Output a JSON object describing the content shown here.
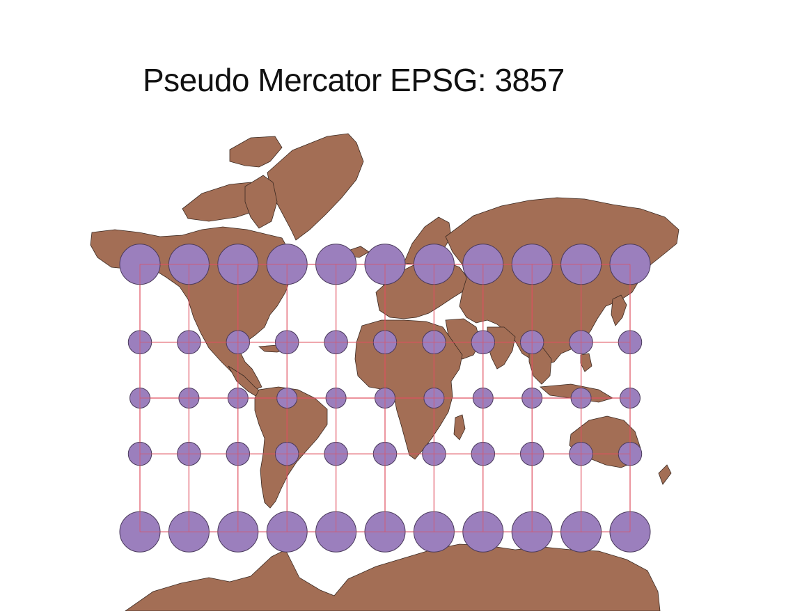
{
  "title": "Pseudo Mercator EPSG: 3857",
  "colors": {
    "land": "#A36E55",
    "land_outline": "#3b2a22",
    "circle_fill": "#9B7FBD",
    "circle_stroke": "#4a3a5c",
    "grid": "#e05060",
    "background": "#ffffff"
  },
  "map": {
    "projection": "Pseudo Mercator",
    "epsg": "3857",
    "layers": [
      "world-land",
      "graticule",
      "tissot-indicatrix"
    ],
    "graticule": {
      "longitudes": [
        -150,
        -120,
        -90,
        -60,
        -30,
        0,
        30,
        60,
        90,
        120,
        150
      ],
      "latitudes": [
        60,
        30,
        0,
        -30,
        -60
      ]
    },
    "tissot_indicatrix": {
      "description": "equal-area circles on the ground, drawn at every graticule intersection",
      "longitudes": [
        -150,
        -120,
        -90,
        -60,
        -30,
        0,
        30,
        60,
        90,
        120,
        150
      ],
      "latitudes": [
        60,
        30,
        0,
        -30,
        -60
      ]
    }
  }
}
